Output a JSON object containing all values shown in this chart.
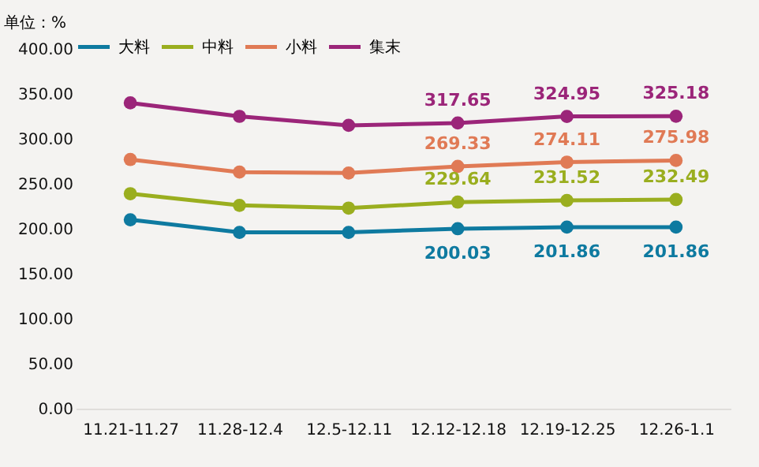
{
  "chart_data": {
    "type": "line",
    "ylabel": "单位：%",
    "categories": [
      "11.21-11.27",
      "11.28-12.4",
      "12.5-12.11",
      "12.12-12.18",
      "12.19-12.25",
      "12.26-1.1"
    ],
    "series": [
      {
        "name": "大料",
        "color": "#0e7aa0",
        "values": [
          210,
          196,
          196,
          200.03,
          201.86,
          201.86
        ],
        "value_labels": [
          null,
          null,
          null,
          "200.03",
          "201.86",
          "201.86"
        ]
      },
      {
        "name": "中料",
        "color": "#9aae1f",
        "values": [
          239,
          226,
          223,
          229.64,
          231.52,
          232.49
        ],
        "value_labels": [
          null,
          null,
          null,
          "229.64",
          "231.52",
          "232.49"
        ]
      },
      {
        "name": "小料",
        "color": "#e07a55",
        "values": [
          277,
          263,
          262,
          269.33,
          274.11,
          275.98
        ],
        "value_labels": [
          null,
          null,
          null,
          "269.33",
          "274.11",
          "275.98"
        ]
      },
      {
        "name": "集末",
        "color": "#9b2579",
        "values": [
          340,
          325,
          315,
          317.65,
          324.95,
          325.18
        ],
        "value_labels": [
          null,
          null,
          null,
          "317.65",
          "324.95",
          "325.18"
        ]
      }
    ],
    "ylim": [
      0,
      400
    ],
    "yticks": [
      {
        "value": 0,
        "label": "0.00"
      },
      {
        "value": 50,
        "label": "50.00"
      },
      {
        "value": 100,
        "label": "100.00"
      },
      {
        "value": 150,
        "label": "150.00"
      },
      {
        "value": 200,
        "label": "200.00"
      },
      {
        "value": 250,
        "label": "250.00"
      },
      {
        "value": 300,
        "label": "300.00"
      },
      {
        "value": 350,
        "label": "350.00"
      },
      {
        "value": 400,
        "label": "400.00"
      }
    ],
    "legend": "top",
    "marker": "circle",
    "grid": false
  }
}
